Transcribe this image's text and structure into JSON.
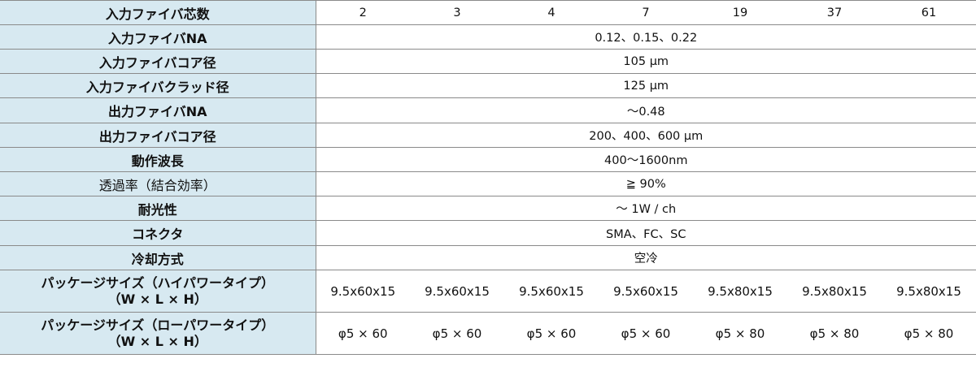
{
  "rows": [
    {
      "label": "入力ファイバ芯数",
      "values": [
        "2",
        "3",
        "4",
        "7",
        "19",
        "37",
        "61"
      ]
    },
    {
      "label": "入力ファイバNA",
      "value": "0.12、0.15、0.22"
    },
    {
      "label": "入力ファイバコア径",
      "value": "105 μm"
    },
    {
      "label": "入力ファイバクラッド径",
      "value": "125 μm"
    },
    {
      "label": "出力ファイバNA",
      "value": "～0.48"
    },
    {
      "label": "出力ファイバコア径",
      "value": "200、400、600 μm"
    },
    {
      "label": "動作波長",
      "value": "400～1600nm"
    },
    {
      "label": "透過率（結合効率）",
      "value": "≧ 90%"
    },
    {
      "label": "耐光性",
      "value": "～ 1W / ch"
    },
    {
      "label": "コネクタ",
      "value": "SMA、FC、SC"
    },
    {
      "label": "冷却方式",
      "value": "空冷"
    },
    {
      "label": "パッケージサイズ（ハイパワータイプ）",
      "label2": "（W × L × H）",
      "values": [
        "9.5x60x15",
        "9.5x60x15",
        "9.5x60x15",
        "9.5x60x15",
        "9.5x80x15",
        "9.5x80x15",
        "9.5x80x15"
      ]
    },
    {
      "label": "パッケージサイズ（ローパワータイプ）",
      "label2": "（W × L × H）",
      "values": [
        "φ5 × 60",
        "φ5 × 60",
        "φ5 × 60",
        "φ5 × 60",
        "φ5 × 80",
        "φ5 × 80",
        "φ5 × 80"
      ]
    }
  ]
}
